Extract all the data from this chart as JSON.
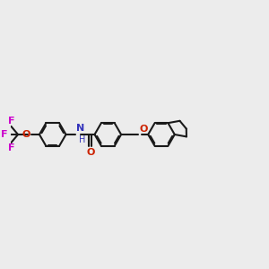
{
  "bg_color": "#ececec",
  "bond_color": "#1a1a1a",
  "N_color": "#3333bb",
  "O_color": "#cc2200",
  "F_color": "#cc00cc",
  "lw": 1.5,
  "dbo": 0.055,
  "r_hex": 0.62,
  "xlim": [
    0,
    12
  ],
  "ylim": [
    2,
    8
  ]
}
